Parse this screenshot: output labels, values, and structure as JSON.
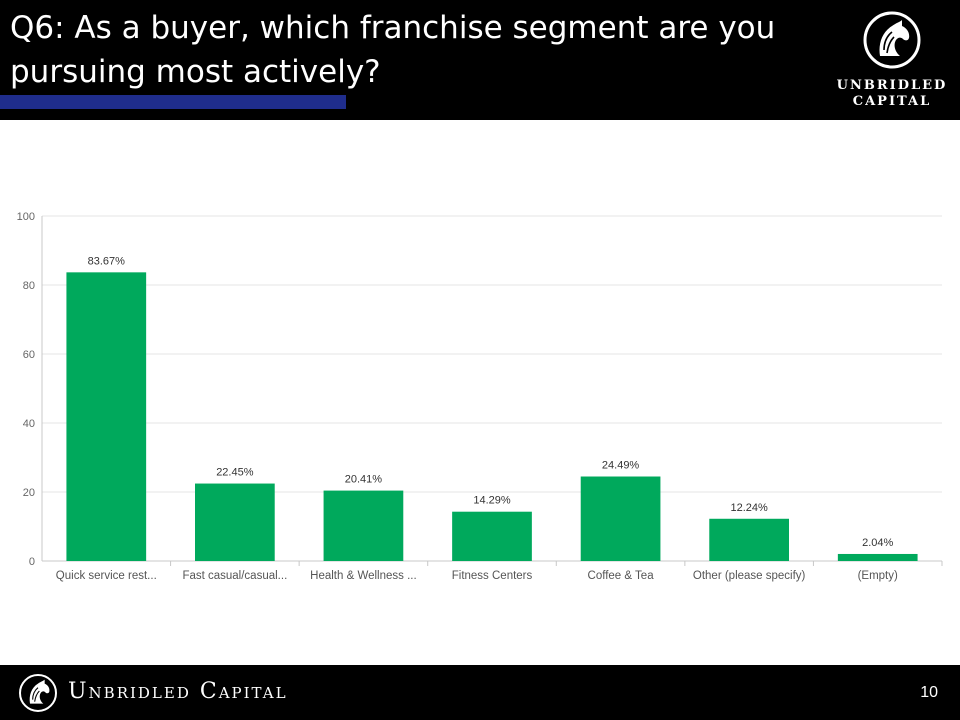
{
  "slide": {
    "title": "Q6: As a buyer, which franchise segment are you pursuing most actively?",
    "logo_text_line1": "UNBRIDLED",
    "logo_text_line2": "CAPITAL",
    "footer_brand": "Unbridled Capital",
    "page_number": "10",
    "colors": {
      "header_bg": "#000000",
      "accent_bar": "#1f2d8c",
      "bar": "#00a95c"
    },
    "icons": {
      "logo": "horse-head-icon"
    }
  },
  "chart_data": {
    "type": "bar",
    "categories": [
      "Quick service rest...",
      "Fast casual/casual...",
      "Health & Wellness ...",
      "Fitness Centers",
      "Coffee & Tea",
      "Other (please specify)",
      "(Empty)"
    ],
    "values": [
      83.67,
      22.45,
      20.41,
      14.29,
      24.49,
      12.24,
      2.04
    ],
    "data_labels": [
      "83.67%",
      "22.45%",
      "20.41%",
      "14.29%",
      "24.49%",
      "12.24%",
      "2.04%"
    ],
    "yticks": [
      0,
      20,
      40,
      60,
      80,
      100
    ],
    "ylim": [
      0,
      100
    ],
    "grid": true,
    "title": "",
    "xlabel": "",
    "ylabel": ""
  }
}
